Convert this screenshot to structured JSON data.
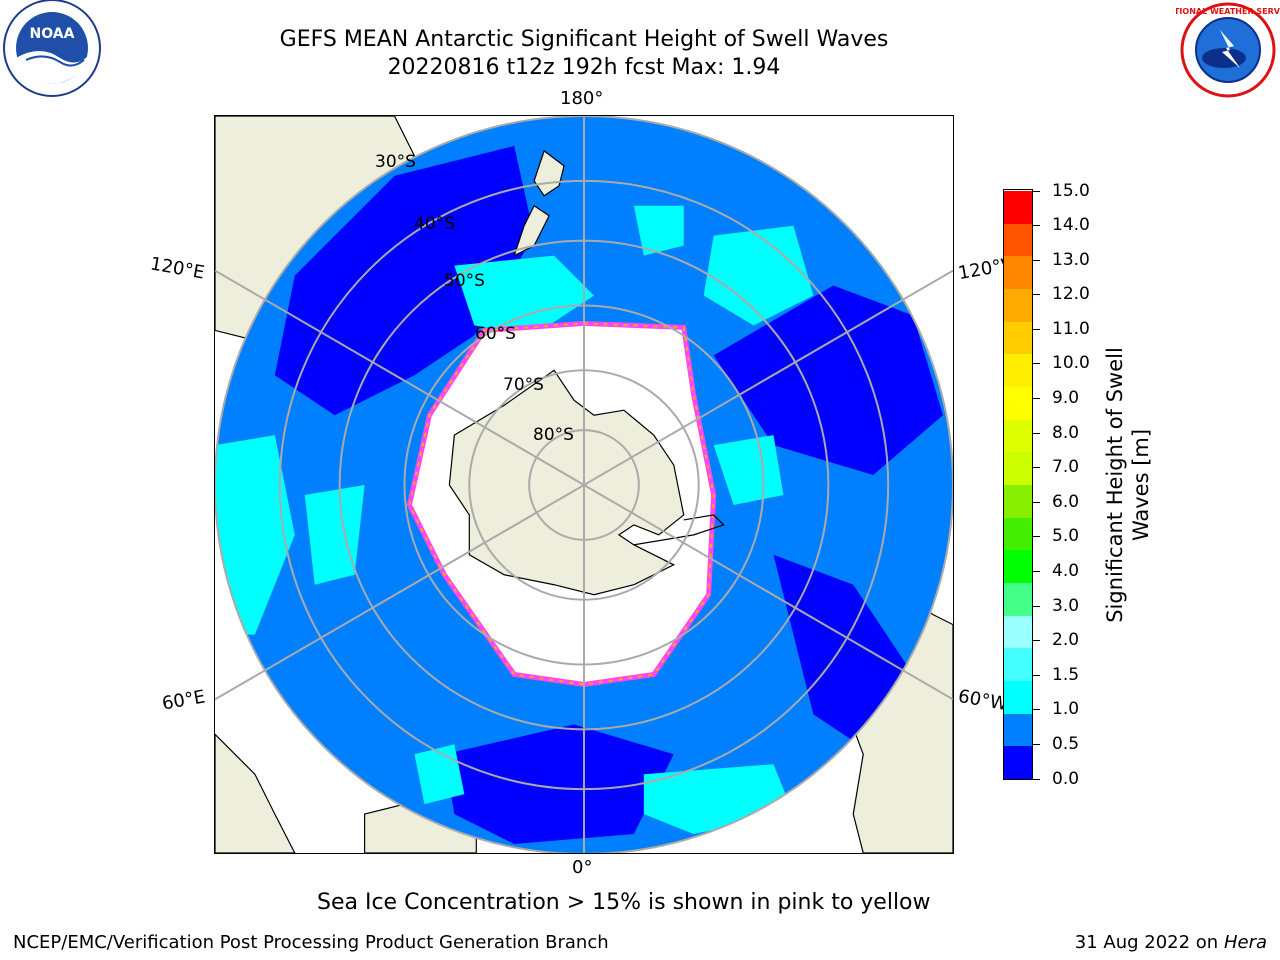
{
  "title": {
    "line1": "GEFS MEAN Antarctic Significant Height of Swell Waves",
    "line2": "20220816 t12z 192h fcst   Max: 1.94"
  },
  "logos": {
    "left": {
      "name": "noaa-logo",
      "text": "NOAA"
    },
    "right": {
      "name": "nws-logo",
      "text": "NATIONAL WEATHER SERVICE"
    }
  },
  "map": {
    "projection": "south-polar-stereographic",
    "longitude_labels": {
      "top": "180°",
      "bottom": "0°",
      "upper_left": "120°E",
      "lower_left": "60°E",
      "upper_right": "120°W",
      "lower_right": "60°W"
    },
    "latitude_labels": [
      "30°S",
      "40°S",
      "50°S",
      "60°S",
      "70°S",
      "80°S"
    ],
    "colors": {
      "land": "#eeeedc",
      "sea_ice": "#ffffff",
      "ocean_0_05": "#0000ff",
      "ocean_05_10": "#0080ff",
      "ocean_10_15": "#00ffff",
      "ice_edge": [
        "#ff44ff",
        "#ffaa00",
        "#ffee00"
      ],
      "grid": "#aaaaaa"
    }
  },
  "colorbar": {
    "label_line1": "Significant Height of Swell",
    "label_line2": "Waves [m]",
    "ticks": [
      "15.0",
      "14.0",
      "13.0",
      "12.0",
      "11.0",
      "10.0",
      "9.0",
      "8.0",
      "7.0",
      "6.0",
      "5.0",
      "4.0",
      "3.0",
      "2.0",
      "1.5",
      "1.0",
      "0.5",
      "0.0"
    ],
    "colors_bottom_to_top": [
      "#0000ff",
      "#0080ff",
      "#00ffff",
      "#44ffff",
      "#99ffff",
      "#44ff88",
      "#00ff00",
      "#44ee00",
      "#88ee00",
      "#ccff00",
      "#ddff00",
      "#ffff00",
      "#ffee00",
      "#ffcc00",
      "#ffaa00",
      "#ff8800",
      "#ff5500",
      "#ff0000"
    ]
  },
  "sea_ice_note": "Sea Ice Concentration > 15% is shown in pink to yellow",
  "footer": {
    "left": "NCEP/EMC/Verification Post Processing Product Generation Branch",
    "date": "31 Aug 2022 on",
    "host": "Hera"
  }
}
